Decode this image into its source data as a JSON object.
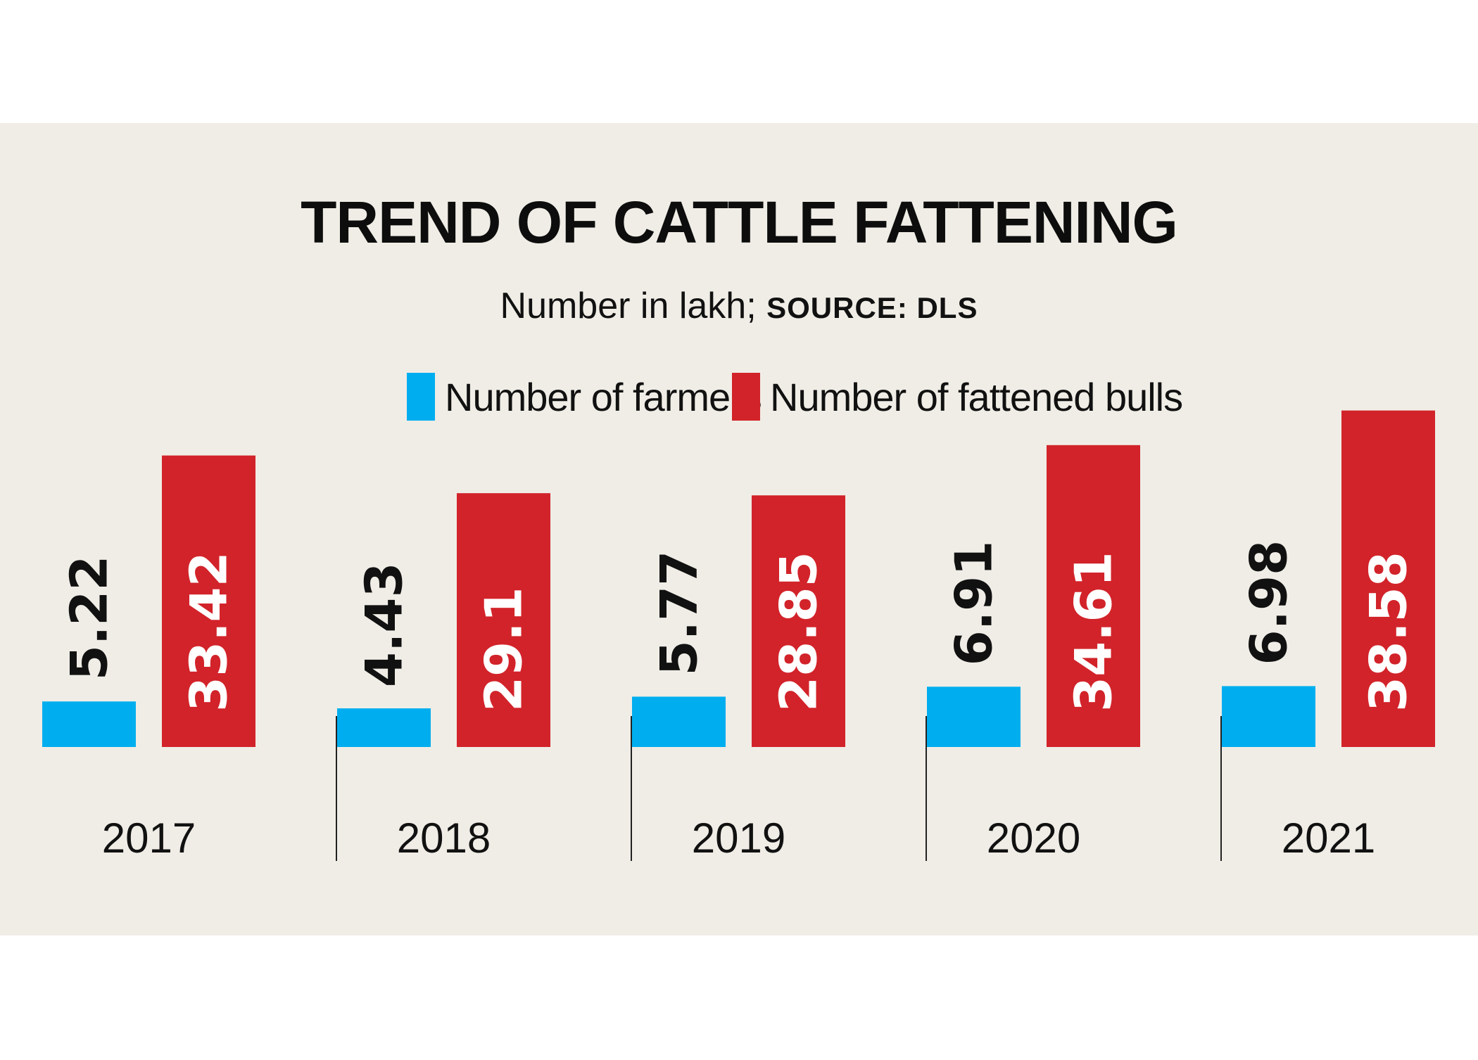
{
  "chart_data": {
    "type": "bar",
    "title": "TREND OF CATTLE FATTENING",
    "subtitle": "Number in lakh;",
    "source": "SOURCE: DLS",
    "categories": [
      "2017",
      "2018",
      "2019",
      "2020",
      "2021"
    ],
    "series": [
      {
        "name": "Number of farmers",
        "color": "#00aeef",
        "label_color": "#111111",
        "values": [
          5.22,
          4.43,
          5.77,
          6.91,
          6.98
        ]
      },
      {
        "name": "Number of fattened bulls",
        "color": "#d2232a",
        "label_color": "#ffffff",
        "values": [
          33.42,
          29.1,
          28.85,
          34.61,
          38.58
        ]
      }
    ],
    "legend_position": "top-center",
    "grid": false
  }
}
